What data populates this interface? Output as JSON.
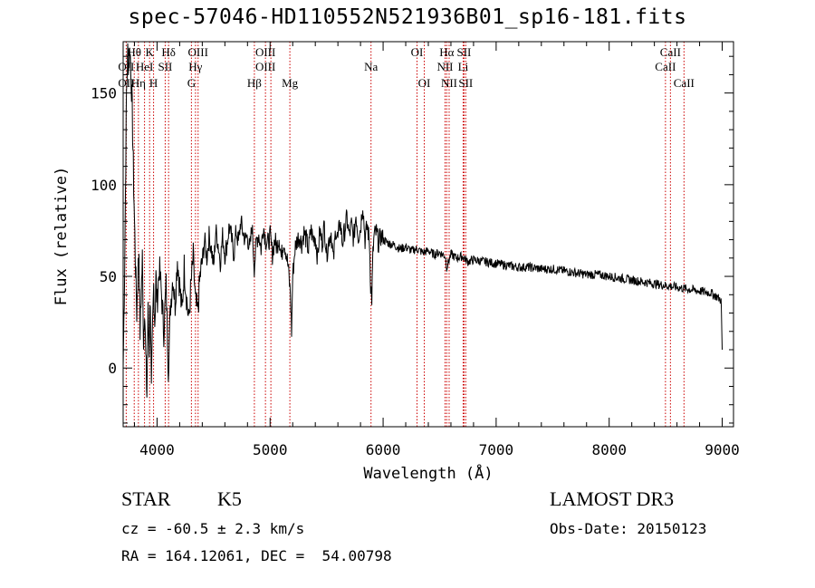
{
  "chart_data": {
    "type": "line",
    "title": "spec-57046-HD110552N521936B01_sp16-181.fits",
    "xlabel": "Wavelength (Å)",
    "ylabel": "Flux (relative)",
    "xlim": [
      3700,
      9100
    ],
    "ylim": [
      -32,
      178
    ],
    "xticks": [
      4000,
      5000,
      6000,
      7000,
      8000,
      9000
    ],
    "yticks": [
      0,
      50,
      100,
      150
    ],
    "series": [
      {
        "name": "flux",
        "points": [
          [
            3700,
            0
          ],
          [
            3710,
            40
          ],
          [
            3720,
            95
          ],
          [
            3730,
            150
          ],
          [
            3740,
            172
          ],
          [
            3750,
            165
          ],
          [
            3760,
            175
          ],
          [
            3770,
            160
          ],
          [
            3780,
            140
          ],
          [
            3790,
            110
          ],
          [
            3800,
            80
          ],
          [
            3810,
            55
          ],
          [
            3820,
            30
          ],
          [
            3830,
            50
          ],
          [
            3840,
            65
          ],
          [
            3850,
            20
          ],
          [
            3860,
            40
          ],
          [
            3870,
            60
          ],
          [
            3880,
            15
          ],
          [
            3890,
            35
          ],
          [
            3900,
            5
          ],
          [
            3910,
            -15
          ],
          [
            3920,
            30
          ],
          [
            3930,
            10
          ],
          [
            3940,
            40
          ],
          [
            3950,
            -15
          ],
          [
            3960,
            20
          ],
          [
            3970,
            45
          ],
          [
            3980,
            25
          ],
          [
            3990,
            50
          ],
          [
            4000,
            35
          ],
          [
            4020,
            55
          ],
          [
            4040,
            40
          ],
          [
            4060,
            20
          ],
          [
            4080,
            45
          ],
          [
            4100,
            0
          ],
          [
            4120,
            35
          ],
          [
            4140,
            50
          ],
          [
            4160,
            35
          ],
          [
            4180,
            60
          ],
          [
            4200,
            45
          ],
          [
            4220,
            30
          ],
          [
            4240,
            55
          ],
          [
            4260,
            40
          ],
          [
            4280,
            25
          ],
          [
            4300,
            45
          ],
          [
            4320,
            60
          ],
          [
            4340,
            35
          ],
          [
            4360,
            30
          ],
          [
            4380,
            50
          ],
          [
            4400,
            58
          ],
          [
            4420,
            70
          ],
          [
            4440,
            60
          ],
          [
            4460,
            72
          ],
          [
            4480,
            65
          ],
          [
            4500,
            55
          ],
          [
            4520,
            75
          ],
          [
            4540,
            68
          ],
          [
            4560,
            58
          ],
          [
            4580,
            72
          ],
          [
            4600,
            62
          ],
          [
            4620,
            68
          ],
          [
            4640,
            78
          ],
          [
            4660,
            70
          ],
          [
            4680,
            62
          ],
          [
            4700,
            75
          ],
          [
            4720,
            68
          ],
          [
            4740,
            80
          ],
          [
            4760,
            74
          ],
          [
            4780,
            70
          ],
          [
            4800,
            72
          ],
          [
            4820,
            64
          ],
          [
            4840,
            78
          ],
          [
            4860,
            55
          ],
          [
            4880,
            70
          ],
          [
            4900,
            73
          ],
          [
            4920,
            65
          ],
          [
            4940,
            78
          ],
          [
            4960,
            70
          ],
          [
            4980,
            68
          ],
          [
            5000,
            72
          ],
          [
            5020,
            62
          ],
          [
            5040,
            70
          ],
          [
            5060,
            66
          ],
          [
            5080,
            72
          ],
          [
            5100,
            60
          ],
          [
            5120,
            70
          ],
          [
            5140,
            64
          ],
          [
            5160,
            55
          ],
          [
            5180,
            40
          ],
          [
            5190,
            20
          ],
          [
            5200,
            50
          ],
          [
            5220,
            65
          ],
          [
            5240,
            70
          ],
          [
            5260,
            72
          ],
          [
            5280,
            68
          ],
          [
            5300,
            74
          ],
          [
            5320,
            70
          ],
          [
            5340,
            64
          ],
          [
            5360,
            76
          ],
          [
            5380,
            70
          ],
          [
            5400,
            72
          ],
          [
            5420,
            60
          ],
          [
            5440,
            75
          ],
          [
            5460,
            68
          ],
          [
            5480,
            78
          ],
          [
            5500,
            62
          ],
          [
            5520,
            70
          ],
          [
            5540,
            74
          ],
          [
            5560,
            58
          ],
          [
            5580,
            76
          ],
          [
            5600,
            70
          ],
          [
            5620,
            80
          ],
          [
            5640,
            68
          ],
          [
            5660,
            75
          ],
          [
            5680,
            82
          ],
          [
            5700,
            72
          ],
          [
            5720,
            78
          ],
          [
            5740,
            70
          ],
          [
            5760,
            84
          ],
          [
            5780,
            72
          ],
          [
            5800,
            76
          ],
          [
            5820,
            90
          ],
          [
            5840,
            70
          ],
          [
            5860,
            78
          ],
          [
            5880,
            68
          ],
          [
            5890,
            45
          ],
          [
            5900,
            38
          ],
          [
            5910,
            62
          ],
          [
            5920,
            72
          ],
          [
            5940,
            74
          ],
          [
            5960,
            68
          ],
          [
            5980,
            72
          ],
          [
            6000,
            70
          ],
          [
            6050,
            68
          ],
          [
            6100,
            67
          ],
          [
            6150,
            65
          ],
          [
            6200,
            66
          ],
          [
            6250,
            64
          ],
          [
            6300,
            65
          ],
          [
            6350,
            63
          ],
          [
            6400,
            64
          ],
          [
            6450,
            62
          ],
          [
            6500,
            63
          ],
          [
            6550,
            61
          ],
          [
            6563,
            55
          ],
          [
            6600,
            62
          ],
          [
            6650,
            60
          ],
          [
            6700,
            61
          ],
          [
            6750,
            58
          ],
          [
            6800,
            59
          ],
          [
            6900,
            58
          ],
          [
            7000,
            57
          ],
          [
            7100,
            56
          ],
          [
            7200,
            55
          ],
          [
            7300,
            55
          ],
          [
            7400,
            54
          ],
          [
            7500,
            54
          ],
          [
            7600,
            53
          ],
          [
            7700,
            52
          ],
          [
            7800,
            51
          ],
          [
            7900,
            51
          ],
          [
            8000,
            50
          ],
          [
            8100,
            49
          ],
          [
            8200,
            48
          ],
          [
            8300,
            47
          ],
          [
            8400,
            46
          ],
          [
            8500,
            45
          ],
          [
            8600,
            44
          ],
          [
            8700,
            43
          ],
          [
            8800,
            42
          ],
          [
            8900,
            41
          ],
          [
            8950,
            39
          ],
          [
            8990,
            37
          ],
          [
            9000,
            10
          ]
        ]
      }
    ],
    "line_labels": [
      {
        "label": "Hθ",
        "wl": 3798,
        "row": 1
      },
      {
        "label": "OII",
        "wl": 3727,
        "row": 2
      },
      {
        "label": "OII",
        "wl": 3727,
        "row": 3
      },
      {
        "label": "K",
        "wl": 3934,
        "row": 1
      },
      {
        "label": "HeI",
        "wl": 3889,
        "row": 2
      },
      {
        "label": "Hη",
        "wl": 3835,
        "row": 3
      },
      {
        "label": "H",
        "wl": 3969,
        "row": 3
      },
      {
        "label": "Hδ",
        "wl": 4102,
        "row": 1
      },
      {
        "label": "SII",
        "wl": 4072,
        "row": 2
      },
      {
        "label": "OIII",
        "wl": 4363,
        "row": 1
      },
      {
        "label": "Hγ",
        "wl": 4340,
        "row": 2
      },
      {
        "label": "G",
        "wl": 4304,
        "row": 3
      },
      {
        "label": "OIII",
        "wl": 4959,
        "row": 1
      },
      {
        "label": "OIII",
        "wl": 4959,
        "row": 2
      },
      {
        "label": "Hβ",
        "wl": 4861,
        "row": 3
      },
      {
        "label": "Mg",
        "wl": 5175,
        "row": 3
      },
      {
        "label": "Na",
        "wl": 5893,
        "row": 2
      },
      {
        "label": "OI",
        "wl": 6300,
        "row": 1
      },
      {
        "label": "OI",
        "wl": 6364,
        "row": 3
      },
      {
        "label": "Hα",
        "wl": 6563,
        "row": 1
      },
      {
        "label": "SII",
        "wl": 6716,
        "row": 1
      },
      {
        "label": "NII",
        "wl": 6548,
        "row": 2
      },
      {
        "label": "Li",
        "wl": 6708,
        "row": 2
      },
      {
        "label": "NII",
        "wl": 6584,
        "row": 3
      },
      {
        "label": "SII",
        "wl": 6731,
        "row": 3
      },
      {
        "label": "CaII",
        "wl": 8542,
        "row": 1
      },
      {
        "label": "CaII",
        "wl": 8498,
        "row": 2
      },
      {
        "label": "CaII",
        "wl": 8662,
        "row": 3
      }
    ],
    "line_marks": [
      3727,
      3798,
      3835,
      3889,
      3934,
      3969,
      4072,
      4102,
      4304,
      4340,
      4363,
      4861,
      4959,
      5007,
      5175,
      5893,
      6300,
      6364,
      6548,
      6563,
      6584,
      6708,
      6716,
      6731,
      8498,
      8542,
      8662
    ],
    "colors": {
      "line_marker": "#cc0000",
      "axis": "#000000",
      "spectrum": "#000000"
    }
  },
  "info": {
    "object_class": "STAR",
    "subclass": "K5",
    "survey": "LAMOST DR3",
    "redshift": "cz = -60.5 ± 2.3 km/s",
    "obs_date": "Obs-Date: 20150123",
    "coords": "RA = 164.12061, DEC =  54.00798"
  }
}
